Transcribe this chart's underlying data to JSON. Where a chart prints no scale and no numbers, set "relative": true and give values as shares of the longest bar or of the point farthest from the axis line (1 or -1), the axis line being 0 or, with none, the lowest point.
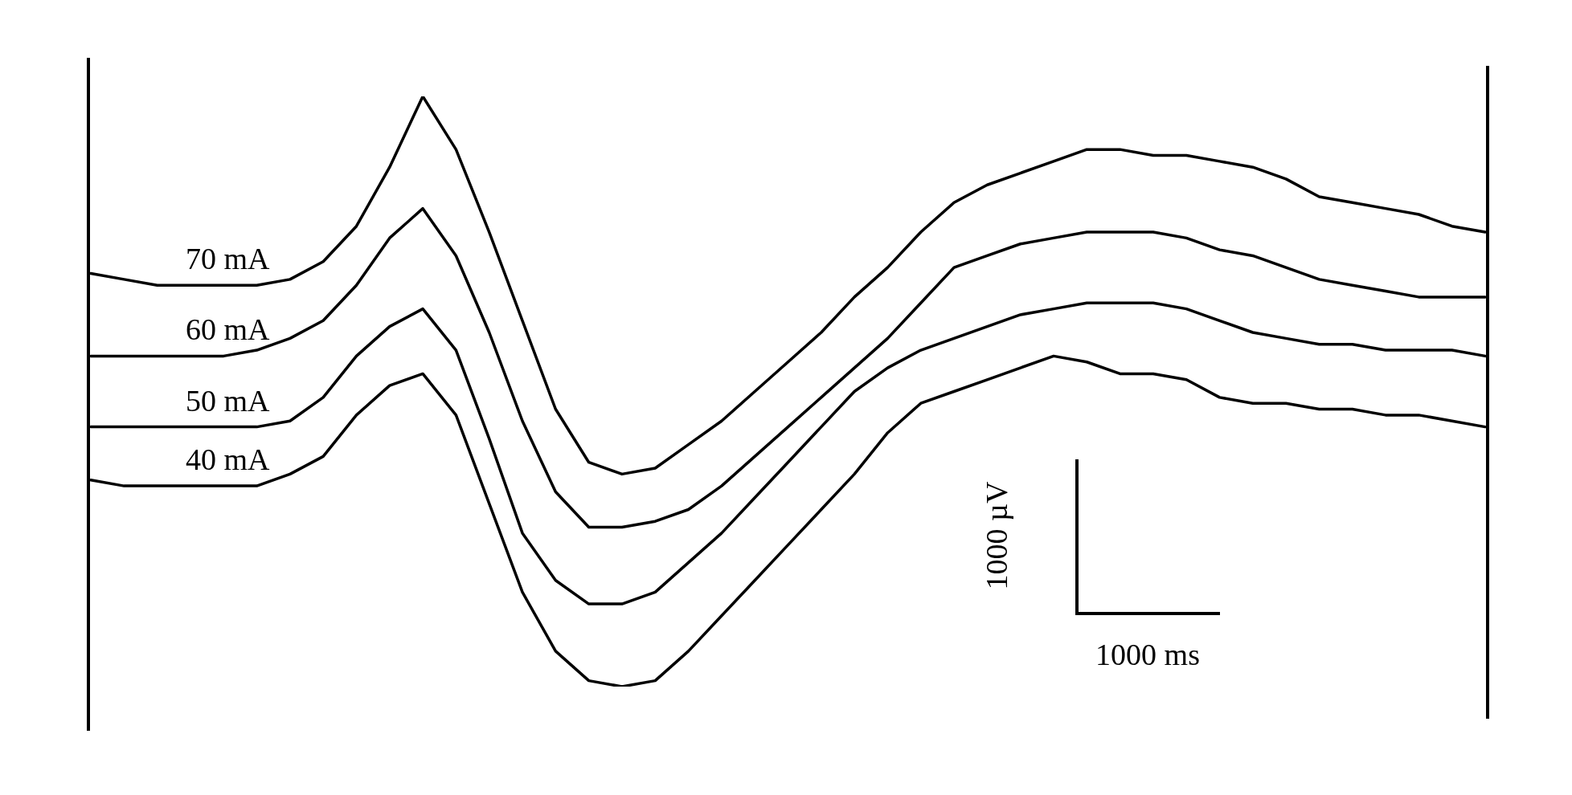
{
  "chart_data": {
    "type": "line",
    "relative": true,
    "marker": "none",
    "line_style": "solid",
    "legend": false,
    "categories": [
      null,
      null,
      null,
      null,
      null,
      null,
      null,
      null,
      null,
      null,
      null,
      null,
      null,
      null,
      null,
      null,
      null,
      null,
      null,
      null,
      null,
      null,
      null,
      null,
      null,
      null,
      null,
      null,
      null,
      null,
      null,
      null,
      null,
      null,
      null,
      null,
      null,
      null,
      null,
      null,
      null,
      null,
      null
    ],
    "series": [
      {
        "name": "70 mA",
        "color": "#000000",
        "values": [
          0.7,
          0.69,
          0.68,
          0.68,
          0.68,
          0.68,
          0.69,
          0.72,
          0.78,
          0.88,
          1,
          0.91,
          0.77,
          0.62,
          0.47,
          0.38,
          0.36,
          0.37,
          0.41,
          0.45,
          0.5,
          0.55,
          0.6,
          0.66,
          0.71,
          0.77,
          0.82,
          0.85,
          0.87,
          0.89,
          0.91,
          0.91,
          0.9,
          0.9,
          0.89,
          0.88,
          0.86,
          0.83,
          0.82,
          0.81,
          0.8,
          0.78,
          0.77
        ]
      },
      {
        "name": "60 mA",
        "color": "#000000",
        "values": [
          0.56,
          0.56,
          0.56,
          0.56,
          0.56,
          0.57,
          0.59,
          0.62,
          0.68,
          0.76,
          0.81,
          0.73,
          0.6,
          0.45,
          0.33,
          0.27,
          0.27,
          0.28,
          0.3,
          0.34,
          0.39,
          0.44,
          0.49,
          0.54,
          0.59,
          0.65,
          0.71,
          0.73,
          0.75,
          0.76,
          0.77,
          0.77,
          0.77,
          0.76,
          0.74,
          0.73,
          0.71,
          0.69,
          0.68,
          0.67,
          0.66,
          0.66,
          0.66
        ]
      },
      {
        "name": "50 mA",
        "color": "#000000",
        "values": [
          0.44,
          0.44,
          0.44,
          0.44,
          0.44,
          0.44,
          0.45,
          0.49,
          0.56,
          0.61,
          0.64,
          0.57,
          0.42,
          0.26,
          0.18,
          0.14,
          0.14,
          0.16,
          0.21,
          0.26,
          0.32,
          0.38,
          0.44,
          0.5,
          0.54,
          0.57,
          0.59,
          0.61,
          0.63,
          0.64,
          0.65,
          0.65,
          0.65,
          0.64,
          0.62,
          0.6,
          0.59,
          0.58,
          0.58,
          0.57,
          0.57,
          0.57,
          0.56
        ]
      },
      {
        "name": "40 mA",
        "color": "#000000",
        "values": [
          0.35,
          0.34,
          0.34,
          0.34,
          0.34,
          0.34,
          0.36,
          0.39,
          0.46,
          0.51,
          0.53,
          0.46,
          0.31,
          0.16,
          0.06,
          0.01,
          0,
          0.01,
          0.06,
          0.12,
          0.18,
          0.24,
          0.3,
          0.36,
          0.43,
          0.48,
          0.5,
          0.52,
          0.54,
          0.56,
          0.55,
          0.53,
          0.53,
          0.52,
          0.49,
          0.48,
          0.48,
          0.47,
          0.47,
          0.46,
          0.46,
          0.45,
          0.44
        ]
      }
    ],
    "annotations": [
      "1000 µV",
      "1000 ms"
    ]
  }
}
